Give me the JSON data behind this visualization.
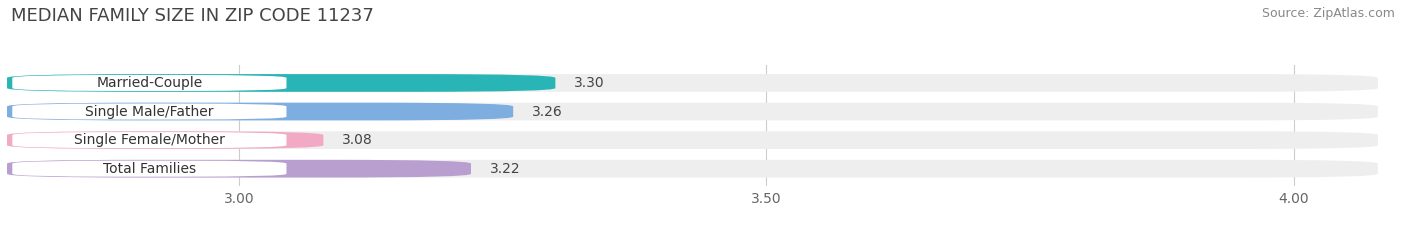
{
  "title": "MEDIAN FAMILY SIZE IN ZIP CODE 11237",
  "source": "Source: ZipAtlas.com",
  "categories": [
    "Married-Couple",
    "Single Male/Father",
    "Single Female/Mother",
    "Total Families"
  ],
  "values": [
    3.3,
    3.26,
    3.08,
    3.22
  ],
  "bar_colors": [
    "#29b5b5",
    "#7eaee0",
    "#f2aac4",
    "#b89fd0"
  ],
  "xlim_min": 2.78,
  "xlim_max": 4.08,
  "xticks": [
    3.0,
    3.5,
    4.0
  ],
  "bar_height": 0.62,
  "background_color": "#ffffff",
  "bar_background_color": "#eeeeee",
  "title_fontsize": 13,
  "source_fontsize": 9,
  "tick_fontsize": 10,
  "label_fontsize": 10,
  "value_fontsize": 10
}
